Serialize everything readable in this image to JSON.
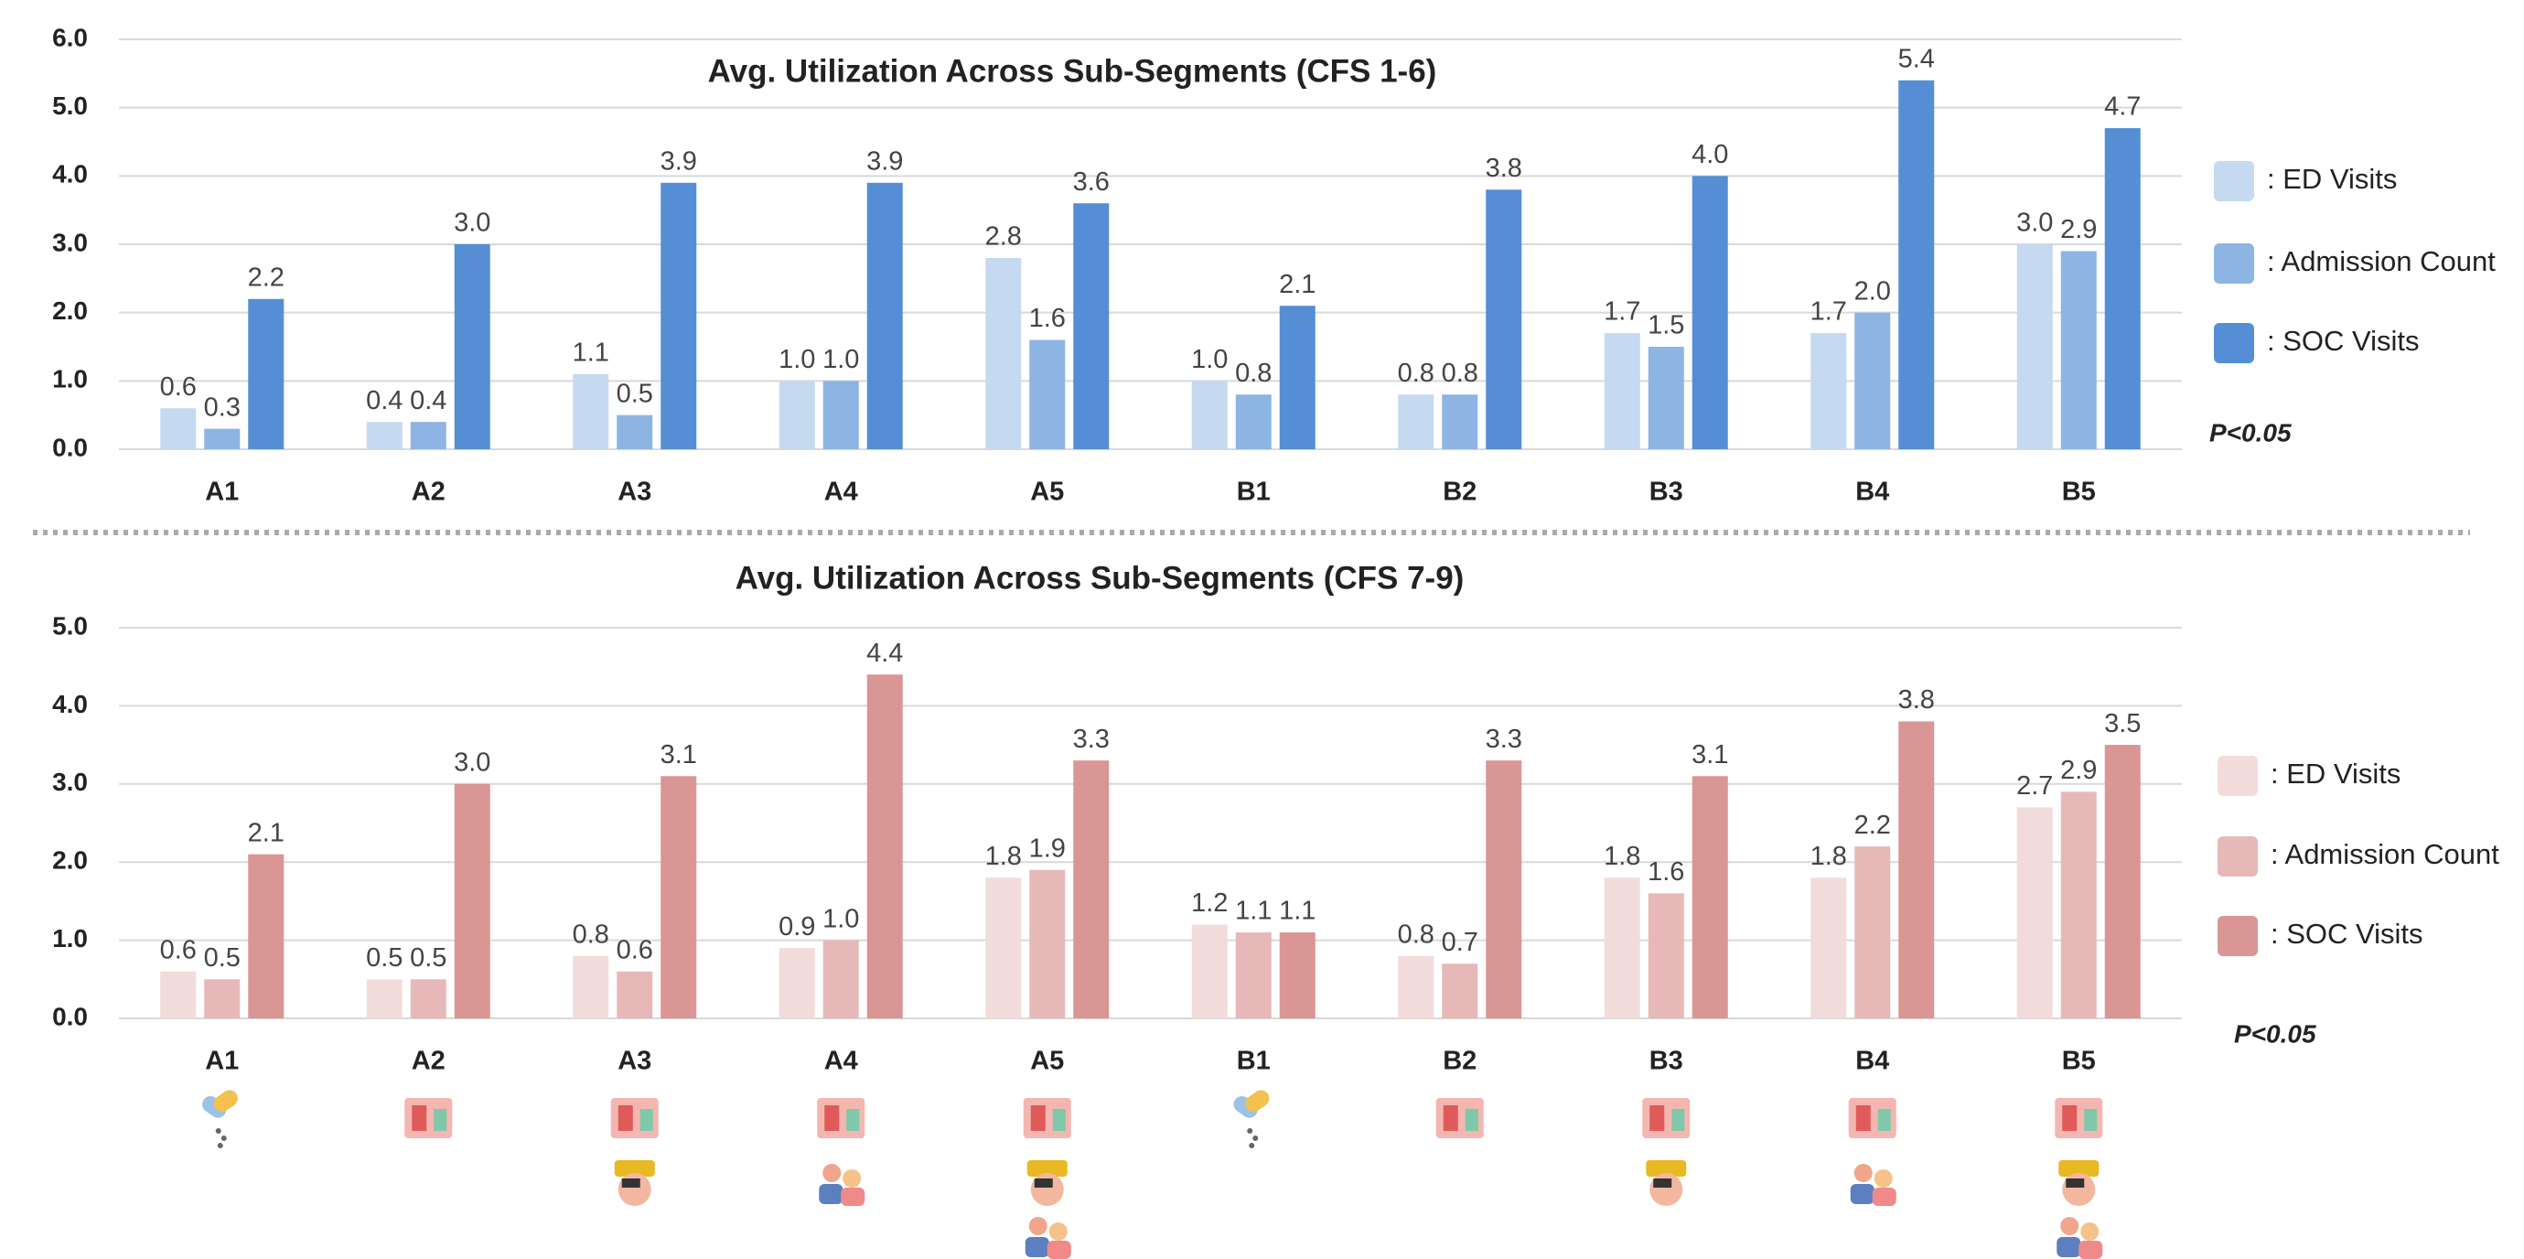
{
  "chart_data": [
    {
      "type": "bar",
      "title": "Avg. Utilization Across Sub-Segments (CFS 1-6)",
      "categories": [
        "A1",
        "A2",
        "A3",
        "A4",
        "A5",
        "B1",
        "B2",
        "B3",
        "B4",
        "B5"
      ],
      "series": [
        {
          "name": ": ED Visits",
          "color": "#c5d9f1",
          "values": [
            0.6,
            0.4,
            1.1,
            1.0,
            2.8,
            1.0,
            0.8,
            1.7,
            1.7,
            3.0
          ],
          "value_labels": [
            "0.6",
            "0.4",
            "1.1",
            "1.0",
            "2.8",
            "1.0",
            "0.8",
            "1.7",
            "1.7",
            "3.0"
          ]
        },
        {
          "name": ": Admission Count",
          "color": "#8eb4e3",
          "values": [
            0.3,
            0.4,
            0.5,
            1.0,
            1.6,
            0.8,
            0.8,
            1.5,
            2.0,
            2.9
          ],
          "value_labels": [
            "0.3",
            "0.4",
            "0.5",
            "1.0",
            "1.6",
            "0.8",
            "0.8",
            "1.5",
            "2.0",
            "2.9"
          ]
        },
        {
          "name": ": SOC Visits",
          "color": "#558ed5",
          "values": [
            2.2,
            3.0,
            3.9,
            3.9,
            3.6,
            2.1,
            3.8,
            4.0,
            5.4,
            4.7
          ],
          "value_labels": [
            "2.2",
            "3.0",
            "3.9",
            "3.9",
            "3.6",
            "2.1",
            "3.8",
            "4.0",
            "5.4",
            "4.7"
          ]
        }
      ],
      "ylim": [
        0,
        6
      ],
      "yticks": [
        {
          "value": 0,
          "label": "0.0"
        },
        {
          "value": 1,
          "label": "1.0"
        },
        {
          "value": 2,
          "label": "2.0"
        },
        {
          "value": 3,
          "label": "3.0"
        },
        {
          "value": 4,
          "label": "4.0"
        },
        {
          "value": 5,
          "label": "5.0"
        },
        {
          "value": 6,
          "label": "6.0"
        }
      ],
      "grid": true,
      "legend": "right",
      "annotation": "P<0.05"
    },
    {
      "type": "bar",
      "title": "Avg. Utilization Across Sub-Segments (CFS 7-9)",
      "categories": [
        "A1",
        "A2",
        "A3",
        "A4",
        "A5",
        "B1",
        "B2",
        "B3",
        "B4",
        "B5"
      ],
      "series": [
        {
          "name": ": ED Visits",
          "color": "#f2dcdb",
          "values": [
            0.6,
            0.5,
            0.8,
            0.9,
            1.8,
            1.2,
            0.8,
            1.8,
            1.8,
            2.7
          ],
          "value_labels": [
            "0.6",
            "0.5",
            "0.8",
            "0.9",
            "1.8",
            "1.2",
            "0.8",
            "1.8",
            "1.8",
            "2.7"
          ]
        },
        {
          "name": ": Admission Count",
          "color": "#e6b9b8",
          "values": [
            0.5,
            0.5,
            0.6,
            1.0,
            1.9,
            1.1,
            0.7,
            1.6,
            2.2,
            2.9
          ],
          "value_labels": [
            "0.5",
            "0.5",
            "0.6",
            "1.0",
            "1.9",
            "1.1",
            "0.7",
            "1.6",
            "2.2",
            "2.9"
          ]
        },
        {
          "name": ": SOC Visits",
          "color": "#d99694",
          "values": [
            2.1,
            3.0,
            3.1,
            4.4,
            3.3,
            1.1,
            3.3,
            3.1,
            3.8,
            3.5
          ],
          "value_labels": [
            "2.1",
            "3.0",
            "3.1",
            "4.4",
            "3.3",
            "1.1",
            "3.3",
            "3.1",
            "3.8",
            "3.5"
          ]
        }
      ],
      "ylim": [
        0,
        5
      ],
      "yticks": [
        {
          "value": 0,
          "label": "0.0"
        },
        {
          "value": 1,
          "label": "1.0"
        },
        {
          "value": 2,
          "label": "2.0"
        },
        {
          "value": 3,
          "label": "3.0"
        },
        {
          "value": 4,
          "label": "4.0"
        },
        {
          "value": 5,
          "label": "5.0"
        }
      ],
      "grid": true,
      "legend": "right",
      "annotation": "P<0.05"
    }
  ]
}
